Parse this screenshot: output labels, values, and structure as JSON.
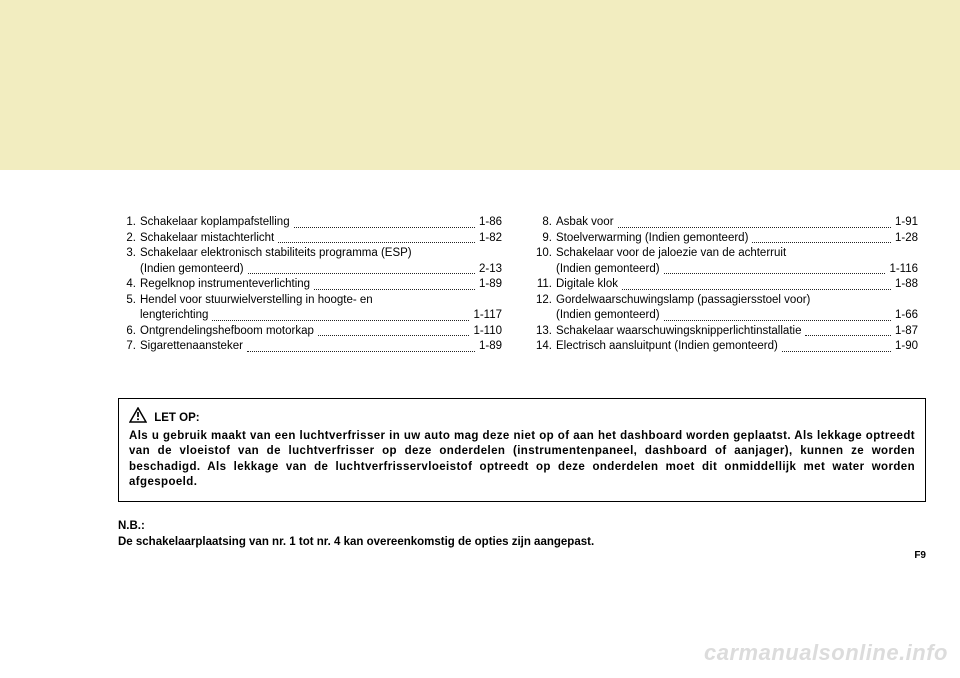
{
  "colors": {
    "band": "#f2edc0",
    "bg": "#ffffff",
    "text": "#000000",
    "watermark": "#dcdcdc"
  },
  "typography": {
    "body_fontsize_pt": 9,
    "folio_fontsize_pt": 7.5,
    "watermark_fontsize_pt": 17,
    "font_family": "Arial"
  },
  "leftList": [
    {
      "num": "1.",
      "label": "Schakelaar koplampafstelling",
      "page": "1-86"
    },
    {
      "num": "2.",
      "label": "Schakelaar mistachterlicht",
      "page": "1-82"
    },
    {
      "num": "3.",
      "label": "Schakelaar elektronisch stabiliteits programma (ESP)",
      "sub": "(Indien gemonteerd)",
      "page": "2-13"
    },
    {
      "num": "4.",
      "label": "Regelknop instrumenteverlichting",
      "page": "1-89"
    },
    {
      "num": "5.",
      "label": "Hendel voor stuurwielverstelling in hoogte- en",
      "sub": "lengterichting",
      "page": "1-117"
    },
    {
      "num": "6.",
      "label": "Ontgrendelingshefboom motorkap",
      "page": "1-110"
    },
    {
      "num": "7.",
      "label": "Sigarettenaansteker",
      "page": "1-89"
    }
  ],
  "rightList": [
    {
      "num": "8.",
      "label": "Asbak voor",
      "page": "1-91"
    },
    {
      "num": "9.",
      "label": "Stoelverwarming (Indien gemonteerd)",
      "page": "1-28"
    },
    {
      "num": "10.",
      "label": "Schakelaar voor de jaloezie van de achterruit",
      "sub": "(Indien gemonteerd)",
      "page": "1-116"
    },
    {
      "num": "11.",
      "label": "Digitale klok",
      "page": "1-88"
    },
    {
      "num": "12.",
      "label": "Gordelwaarschuwingslamp (passagiersstoel voor)",
      "sub": "(Indien gemonteerd)",
      "page": "1-66"
    },
    {
      "num": "13.",
      "label": "Schakelaar waarschuwingsknipperlichtinstallatie",
      "page": "1-87"
    },
    {
      "num": "14.",
      "label": "Electrisch aansluitpunt (Indien gemonteerd)",
      "page": "1-90"
    }
  ],
  "notice": {
    "title": "LET OP:",
    "body": "Als u gebruik maakt van een luchtverfrisser in uw auto mag deze niet op of aan het dashboard worden geplaatst. Als lekkage optreedt van de vloeistof van de luchtverfrisser op deze onderdelen (instrumentenpaneel, dashboard of aanjager), kunnen ze worden beschadigd. Als lekkage van de luchtverfrisservloeistof optreedt op deze onderdelen moet dit onmiddellijk met water worden afgespoeld."
  },
  "nb": {
    "title": "N.B.:",
    "text": "De schakelaarplaatsing van nr. 1 tot nr. 4 kan overeenkomstig de opties zijn aangepast."
  },
  "folio": "F9",
  "watermark": "carmanualsonline.info"
}
